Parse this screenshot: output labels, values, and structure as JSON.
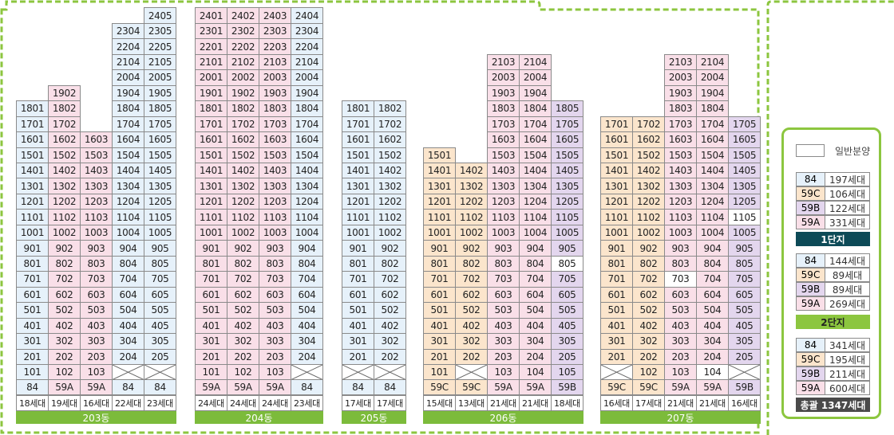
{
  "colors": {
    "84": "#e6f1fa",
    "59A": "#f9dfe8",
    "59B": "#e3d6ee",
    "59C": "#fbe5cc",
    "none": "#ffffff",
    "accent": "#7cbb3b",
    "danji1": "#0d4a57",
    "danji2": "#8cc63f",
    "total": "#4a4a4a"
  },
  "buildings": [
    {
      "name": "203동",
      "columns": [
        {
          "top": 1801,
          "type": "84",
          "exceptions": {},
          "blank_floors": [],
          "type_label": "84",
          "household": "18세대"
        },
        {
          "top": 1902,
          "type": "59A",
          "exceptions": {},
          "blank_floors": [],
          "type_label": "59A",
          "household": "19세대"
        },
        {
          "top": 1603,
          "type": "59A",
          "exceptions": {},
          "blank_floors": [],
          "type_label": "59A",
          "household": "16세대"
        },
        {
          "top": 2304,
          "type": "84",
          "exceptions": {},
          "blank_floors": [
            1
          ],
          "type_label": "84",
          "household": "22세대"
        },
        {
          "top": 2405,
          "type": "84",
          "exceptions": {},
          "blank_floors": [
            1
          ],
          "type_label": "84",
          "household": "23세대"
        }
      ]
    },
    {
      "name": "204동",
      "columns": [
        {
          "top": 2401,
          "type": "59A",
          "exceptions": {},
          "blank_floors": [],
          "type_label": "59A",
          "household": "24세대"
        },
        {
          "top": 2402,
          "type": "59A",
          "exceptions": {},
          "blank_floors": [],
          "type_label": "59A",
          "household": "24세대"
        },
        {
          "top": 2403,
          "type": "59A",
          "exceptions": {},
          "blank_floors": [],
          "type_label": "59A",
          "household": "24세대"
        },
        {
          "top": 2404,
          "type": "84",
          "exceptions": {},
          "blank_floors": [
            1
          ],
          "type_label": "84",
          "household": "23세대"
        }
      ]
    },
    {
      "name": "205동",
      "columns": [
        {
          "top": 1801,
          "type": "84",
          "exceptions": {},
          "blank_floors": [
            1
          ],
          "type_label": "84",
          "household": "17세대"
        },
        {
          "top": 1802,
          "type": "84",
          "exceptions": {},
          "blank_floors": [
            1
          ],
          "type_label": "84",
          "household": "17세대"
        }
      ]
    },
    {
      "name": "206동",
      "columns": [
        {
          "top": 1501,
          "type": "59C",
          "exceptions": {},
          "blank_floors": [],
          "type_label": "59C",
          "household": "15세대"
        },
        {
          "top": 1402,
          "type": "59C",
          "exceptions": {},
          "blank_floors": [
            1
          ],
          "type_label": "59C",
          "household": "13세대"
        },
        {
          "top": 2103,
          "type": "59A",
          "exceptions": {},
          "blank_floors": [],
          "type_label": "59A",
          "household": "21세대"
        },
        {
          "top": 2104,
          "type": "59A",
          "exceptions": {},
          "blank_floors": [],
          "type_label": "59A",
          "household": "21세대"
        },
        {
          "top": 1805,
          "type": "59B",
          "exceptions": {
            "805": "none"
          },
          "blank_floors": [],
          "type_label": "59B",
          "household": "18세대"
        }
      ]
    },
    {
      "name": "207동",
      "columns": [
        {
          "top": 1701,
          "type": "59C",
          "exceptions": {},
          "blank_floors": [
            1
          ],
          "type_label": "59C",
          "household": "16세대"
        },
        {
          "top": 1702,
          "type": "59C",
          "exceptions": {},
          "blank_floors": [],
          "type_label": "59C",
          "household": "17세대"
        },
        {
          "top": 2103,
          "type": "59A",
          "exceptions": {
            "703": "none"
          },
          "blank_floors": [],
          "type_label": "59A",
          "household": "21세대"
        },
        {
          "top": 2104,
          "type": "59A",
          "exceptions": {
            "104": "none"
          },
          "blank_floors": [],
          "type_label": "59A",
          "household": "21세대"
        },
        {
          "top": 1705,
          "type": "59B",
          "exceptions": {
            "1105": "none"
          },
          "blank_floors": [
            1
          ],
          "type_label": "59B",
          "household": "16세대"
        }
      ]
    }
  ],
  "legend": {
    "general_label": "일반분양",
    "groups": [
      {
        "rows": [
          {
            "type": "84",
            "count": "197세대"
          },
          {
            "type": "59C",
            "count": "106세대"
          },
          {
            "type": "59B",
            "count": "122세대"
          },
          {
            "type": "59A",
            "count": "331세대"
          }
        ],
        "label": "1단지",
        "color_key": "danji1"
      },
      {
        "rows": [
          {
            "type": "84",
            "count": "144세대"
          },
          {
            "type": "59C",
            "count": "89세대"
          },
          {
            "type": "59B",
            "count": "89세대"
          },
          {
            "type": "59A",
            "count": "269세대"
          }
        ],
        "label": "2단지",
        "color_key": "danji2"
      },
      {
        "rows": [
          {
            "type": "84",
            "count": "341세대"
          },
          {
            "type": "59C",
            "count": "195세대"
          },
          {
            "type": "59B",
            "count": "211세대"
          },
          {
            "type": "59A",
            "count": "600세대"
          }
        ],
        "label": "총괄 1347세대",
        "color_key": "total"
      }
    ]
  }
}
